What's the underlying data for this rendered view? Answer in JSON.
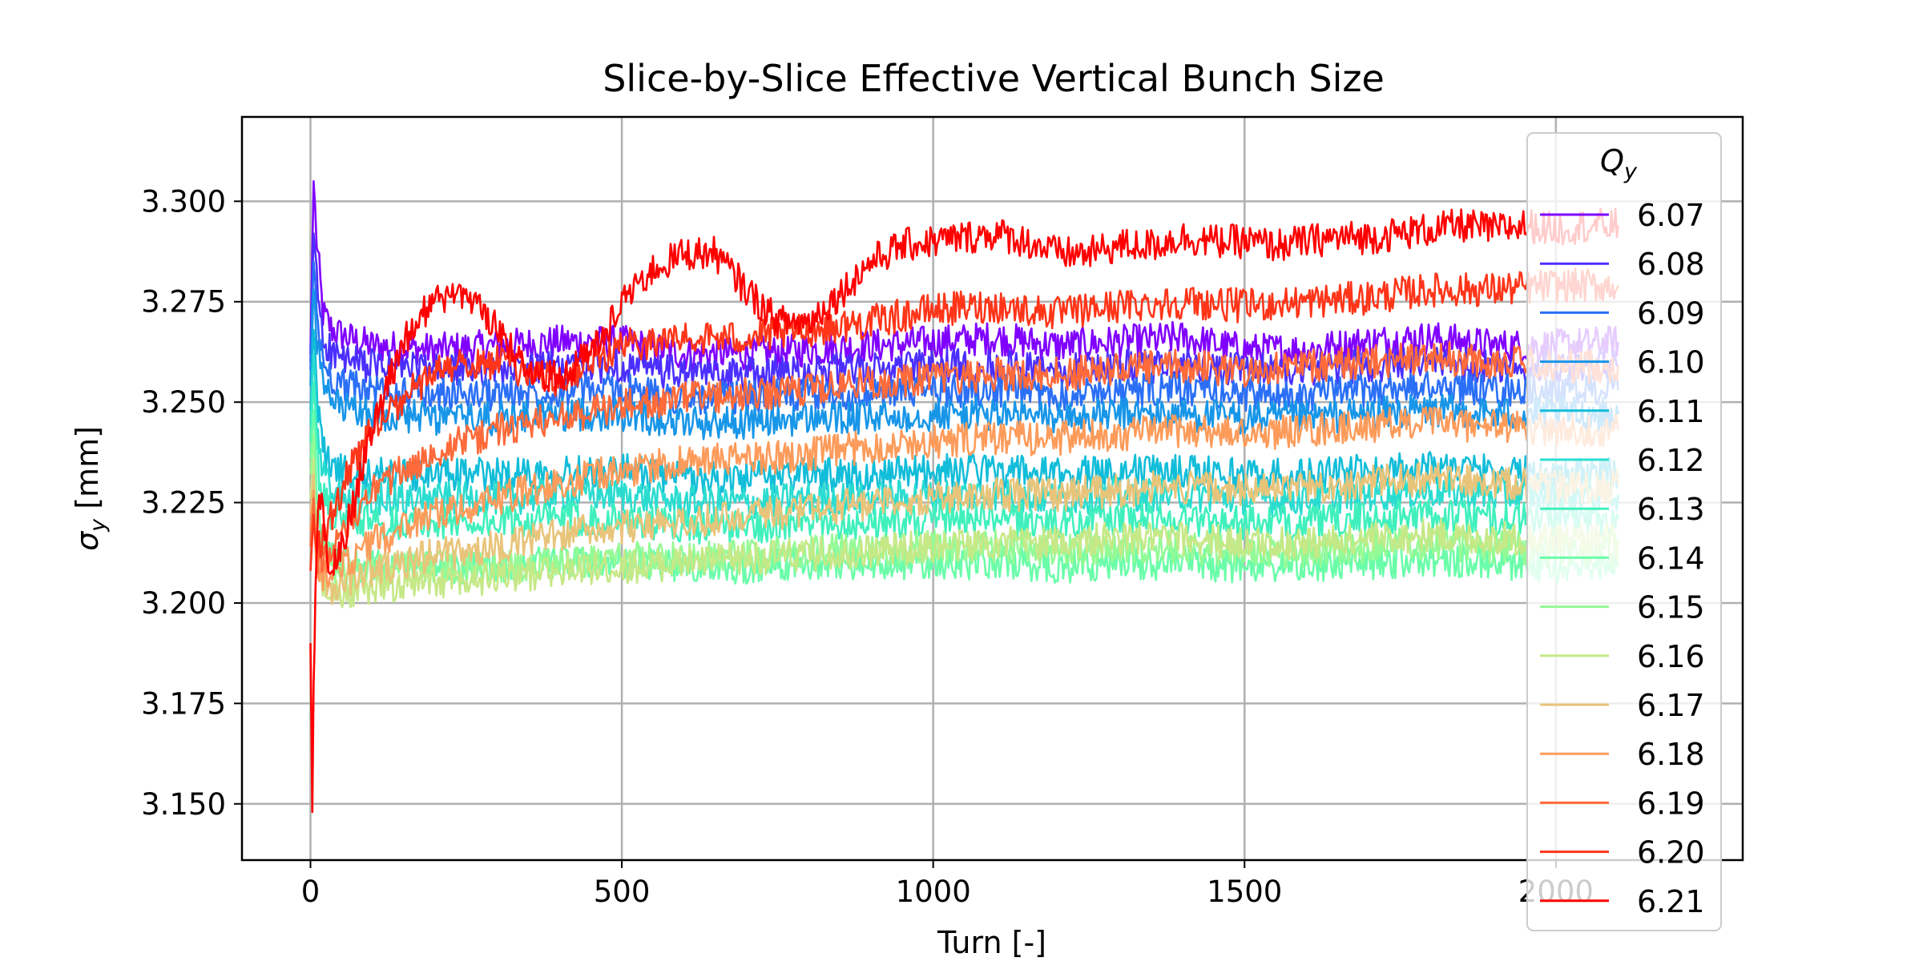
{
  "chart_data": {
    "type": "line",
    "title": "Slice-by-Slice Effective Vertical Bunch Size",
    "xlabel": "Turn [-]",
    "ylabel_main": "σ",
    "ylabel_sub": "y",
    "ylabel_unit": " [mm]",
    "xlim": [
      -110,
      2300
    ],
    "ylim": [
      3.136,
      3.321
    ],
    "xticks": [
      0,
      500,
      1000,
      1500,
      2000
    ],
    "xtick_labels": [
      "0",
      "500",
      "1000",
      "1500",
      "2000"
    ],
    "yticks": [
      3.15,
      3.175,
      3.2,
      3.225,
      3.25,
      3.275,
      3.3
    ],
    "ytick_labels": [
      "3.150",
      "3.175",
      "3.200",
      "3.225",
      "3.250",
      "3.275",
      "3.300"
    ],
    "grid": true,
    "legend": {
      "title_main": "Q",
      "title_sub": "y",
      "placement": "upper-right"
    },
    "series": [
      {
        "name": "6.07",
        "color": "#8000ff",
        "x": [
          0,
          5,
          10,
          20,
          35,
          60,
          100,
          200,
          300,
          400,
          500,
          600,
          700,
          800,
          900,
          1000,
          1100,
          1200,
          1300,
          1400,
          1500,
          1600,
          1700,
          1800,
          1900,
          2000,
          2100
        ],
        "y": [
          3.262,
          3.305,
          3.29,
          3.272,
          3.268,
          3.266,
          3.264,
          3.263,
          3.264,
          3.265,
          3.265,
          3.262,
          3.262,
          3.263,
          3.264,
          3.265,
          3.266,
          3.264,
          3.265,
          3.266,
          3.263,
          3.263,
          3.265,
          3.266,
          3.264,
          3.264,
          3.265
        ]
      },
      {
        "name": "6.08",
        "color": "#4a2ffe",
        "x": [
          0,
          5,
          10,
          20,
          35,
          60,
          100,
          200,
          300,
          400,
          500,
          600,
          700,
          800,
          900,
          1000,
          1100,
          1200,
          1300,
          1400,
          1500,
          1600,
          1700,
          1800,
          1900,
          2000,
          2100
        ],
        "y": [
          3.26,
          3.292,
          3.28,
          3.266,
          3.262,
          3.26,
          3.259,
          3.258,
          3.258,
          3.259,
          3.259,
          3.257,
          3.257,
          3.258,
          3.258,
          3.259,
          3.259,
          3.258,
          3.259,
          3.259,
          3.258,
          3.258,
          3.259,
          3.26,
          3.259,
          3.259,
          3.259
        ]
      },
      {
        "name": "6.09",
        "color": "#2a6ff6",
        "x": [
          0,
          5,
          10,
          20,
          35,
          60,
          100,
          200,
          300,
          400,
          500,
          600,
          700,
          800,
          900,
          1000,
          1100,
          1200,
          1300,
          1400,
          1500,
          1600,
          1700,
          1800,
          1900,
          2000,
          2100
        ],
        "y": [
          3.258,
          3.285,
          3.272,
          3.26,
          3.256,
          3.254,
          3.253,
          3.252,
          3.252,
          3.253,
          3.253,
          3.251,
          3.251,
          3.252,
          3.252,
          3.253,
          3.253,
          3.252,
          3.253,
          3.253,
          3.252,
          3.252,
          3.253,
          3.254,
          3.253,
          3.253,
          3.253
        ]
      },
      {
        "name": "6.10",
        "color": "#1796e8",
        "x": [
          0,
          5,
          10,
          20,
          35,
          60,
          100,
          200,
          300,
          400,
          500,
          600,
          700,
          800,
          900,
          1000,
          1100,
          1200,
          1300,
          1400,
          1500,
          1600,
          1700,
          1800,
          1900,
          2000,
          2100
        ],
        "y": [
          3.254,
          3.278,
          3.265,
          3.254,
          3.25,
          3.248,
          3.247,
          3.246,
          3.246,
          3.247,
          3.247,
          3.245,
          3.245,
          3.246,
          3.246,
          3.247,
          3.247,
          3.246,
          3.247,
          3.247,
          3.246,
          3.246,
          3.247,
          3.248,
          3.247,
          3.247,
          3.247
        ]
      },
      {
        "name": "6.11",
        "color": "#12bdd9",
        "x": [
          0,
          5,
          10,
          20,
          35,
          60,
          100,
          200,
          300,
          400,
          500,
          600,
          700,
          800,
          900,
          1000,
          1100,
          1200,
          1300,
          1400,
          1500,
          1600,
          1700,
          1800,
          1900,
          2000,
          2100
        ],
        "y": [
          3.248,
          3.268,
          3.252,
          3.238,
          3.234,
          3.232,
          3.232,
          3.232,
          3.232,
          3.233,
          3.233,
          3.231,
          3.231,
          3.232,
          3.232,
          3.233,
          3.233,
          3.232,
          3.233,
          3.233,
          3.232,
          3.232,
          3.233,
          3.234,
          3.233,
          3.232,
          3.232
        ]
      },
      {
        "name": "6.12",
        "color": "#2adcd0",
        "x": [
          0,
          5,
          10,
          20,
          35,
          60,
          100,
          200,
          300,
          400,
          500,
          600,
          700,
          800,
          900,
          1000,
          1100,
          1200,
          1300,
          1400,
          1500,
          1600,
          1700,
          1800,
          1900,
          2000,
          2100
        ],
        "y": [
          3.244,
          3.262,
          3.244,
          3.232,
          3.228,
          3.226,
          3.226,
          3.226,
          3.226,
          3.227,
          3.227,
          3.225,
          3.225,
          3.226,
          3.226,
          3.227,
          3.227,
          3.226,
          3.227,
          3.227,
          3.226,
          3.226,
          3.227,
          3.228,
          3.227,
          3.227,
          3.227
        ]
      },
      {
        "name": "6.13",
        "color": "#3ff0bd",
        "x": [
          0,
          5,
          10,
          20,
          35,
          60,
          100,
          200,
          300,
          400,
          500,
          600,
          700,
          800,
          900,
          1000,
          1100,
          1200,
          1300,
          1400,
          1500,
          1600,
          1700,
          1800,
          1900,
          2000,
          2100
        ],
        "y": [
          3.24,
          3.255,
          3.236,
          3.226,
          3.222,
          3.221,
          3.22,
          3.22,
          3.22,
          3.221,
          3.221,
          3.219,
          3.219,
          3.22,
          3.22,
          3.221,
          3.221,
          3.22,
          3.221,
          3.221,
          3.22,
          3.22,
          3.221,
          3.222,
          3.221,
          3.221,
          3.221
        ]
      },
      {
        "name": "6.14",
        "color": "#6afda9",
        "x": [
          0,
          5,
          10,
          20,
          35,
          60,
          100,
          200,
          300,
          400,
          500,
          600,
          700,
          800,
          900,
          1000,
          1100,
          1200,
          1300,
          1400,
          1500,
          1600,
          1700,
          1800,
          1900,
          2000,
          2100
        ],
        "y": [
          3.236,
          3.248,
          3.226,
          3.216,
          3.212,
          3.21,
          3.209,
          3.209,
          3.209,
          3.21,
          3.21,
          3.209,
          3.209,
          3.21,
          3.21,
          3.21,
          3.21,
          3.209,
          3.21,
          3.21,
          3.209,
          3.209,
          3.21,
          3.211,
          3.21,
          3.209,
          3.209
        ]
      },
      {
        "name": "6.15",
        "color": "#94fa95",
        "x": [
          0,
          5,
          10,
          20,
          35,
          60,
          100,
          200,
          300,
          400,
          500,
          600,
          700,
          800,
          900,
          1000,
          1100,
          1200,
          1300,
          1400,
          1500,
          1600,
          1700,
          1800,
          1900,
          2000,
          2100
        ],
        "y": [
          3.232,
          3.242,
          3.22,
          3.212,
          3.209,
          3.208,
          3.208,
          3.209,
          3.209,
          3.21,
          3.211,
          3.211,
          3.212,
          3.213,
          3.213,
          3.214,
          3.214,
          3.213,
          3.214,
          3.214,
          3.213,
          3.213,
          3.214,
          3.215,
          3.214,
          3.213,
          3.213
        ]
      },
      {
        "name": "6.16",
        "color": "#c6e886",
        "x": [
          0,
          5,
          10,
          20,
          35,
          60,
          100,
          200,
          300,
          400,
          500,
          600,
          700,
          800,
          900,
          1000,
          1100,
          1200,
          1300,
          1400,
          1500,
          1600,
          1700,
          1800,
          1900,
          2000,
          2100
        ],
        "y": [
          3.226,
          3.236,
          3.214,
          3.206,
          3.203,
          3.203,
          3.204,
          3.205,
          3.206,
          3.208,
          3.209,
          3.21,
          3.211,
          3.212,
          3.213,
          3.214,
          3.215,
          3.215,
          3.216,
          3.216,
          3.215,
          3.215,
          3.216,
          3.217,
          3.216,
          3.216,
          3.216
        ]
      },
      {
        "name": "6.17",
        "color": "#e8c47a",
        "x": [
          0,
          5,
          10,
          20,
          35,
          60,
          100,
          200,
          300,
          400,
          500,
          600,
          700,
          800,
          900,
          1000,
          1100,
          1200,
          1300,
          1400,
          1500,
          1600,
          1700,
          1800,
          1900,
          2000,
          2100
        ],
        "y": [
          3.222,
          3.232,
          3.212,
          3.205,
          3.204,
          3.206,
          3.208,
          3.212,
          3.214,
          3.217,
          3.219,
          3.22,
          3.222,
          3.223,
          3.225,
          3.226,
          3.227,
          3.227,
          3.228,
          3.229,
          3.228,
          3.229,
          3.23,
          3.231,
          3.23,
          3.229,
          3.229
        ]
      },
      {
        "name": "6.18",
        "color": "#fd9b5a",
        "x": [
          0,
          5,
          10,
          20,
          35,
          60,
          100,
          200,
          300,
          400,
          500,
          600,
          700,
          800,
          900,
          1000,
          1100,
          1200,
          1300,
          1400,
          1500,
          1600,
          1700,
          1800,
          1900,
          2000,
          2100
        ],
        "y": [
          3.218,
          3.228,
          3.21,
          3.206,
          3.207,
          3.21,
          3.215,
          3.222,
          3.226,
          3.23,
          3.233,
          3.235,
          3.236,
          3.237,
          3.239,
          3.24,
          3.241,
          3.241,
          3.242,
          3.243,
          3.242,
          3.243,
          3.244,
          3.245,
          3.244,
          3.243,
          3.243
        ]
      },
      {
        "name": "6.19",
        "color": "#ff6a3a",
        "x": [
          0,
          5,
          10,
          20,
          35,
          60,
          100,
          200,
          300,
          400,
          500,
          600,
          700,
          800,
          900,
          1000,
          1100,
          1200,
          1300,
          1400,
          1500,
          1600,
          1700,
          1800,
          1900,
          2000,
          2100
        ],
        "y": [
          3.214,
          3.226,
          3.212,
          3.21,
          3.214,
          3.22,
          3.228,
          3.238,
          3.243,
          3.246,
          3.249,
          3.251,
          3.252,
          3.253,
          3.255,
          3.256,
          3.257,
          3.257,
          3.258,
          3.259,
          3.258,
          3.259,
          3.26,
          3.261,
          3.26,
          3.259,
          3.259
        ]
      },
      {
        "name": "6.20",
        "color": "#ff3519",
        "x": [
          0,
          5,
          10,
          20,
          35,
          60,
          100,
          200,
          300,
          400,
          500,
          600,
          700,
          800,
          900,
          1000,
          1100,
          1200,
          1300,
          1400,
          1500,
          1600,
          1700,
          1800,
          1900,
          2000,
          2100
        ],
        "y": [
          3.208,
          3.222,
          3.214,
          3.216,
          3.222,
          3.232,
          3.244,
          3.258,
          3.26,
          3.255,
          3.264,
          3.266,
          3.266,
          3.268,
          3.27,
          3.273,
          3.274,
          3.272,
          3.274,
          3.275,
          3.274,
          3.275,
          3.276,
          3.278,
          3.278,
          3.279,
          3.279
        ]
      },
      {
        "name": "6.21",
        "color": "#ff0000",
        "x": [
          0,
          3,
          5,
          8,
          12,
          18,
          25,
          35,
          50,
          75,
          100,
          150,
          200,
          250,
          300,
          350,
          400,
          450,
          500,
          550,
          600,
          650,
          700,
          750,
          800,
          850,
          900,
          950,
          1000,
          1050,
          1100,
          1150,
          1200,
          1250,
          1300,
          1350,
          1400,
          1450,
          1500,
          1550,
          1600,
          1650,
          1700,
          1750,
          1800,
          1850,
          1900,
          1950,
          2000,
          2050,
          2100
        ],
        "y": [
          3.19,
          3.148,
          3.18,
          3.2,
          3.222,
          3.228,
          3.214,
          3.209,
          3.214,
          3.228,
          3.245,
          3.265,
          3.276,
          3.277,
          3.268,
          3.258,
          3.256,
          3.262,
          3.275,
          3.283,
          3.287,
          3.287,
          3.278,
          3.27,
          3.27,
          3.277,
          3.285,
          3.289,
          3.29,
          3.291,
          3.292,
          3.29,
          3.287,
          3.287,
          3.289,
          3.289,
          3.291,
          3.29,
          3.29,
          3.289,
          3.29,
          3.291,
          3.291,
          3.292,
          3.293,
          3.294,
          3.293,
          3.294,
          3.293,
          3.294,
          3.294
        ]
      }
    ]
  }
}
